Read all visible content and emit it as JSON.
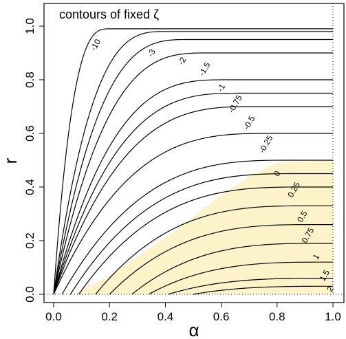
{
  "chart_data": {
    "type": "line",
    "annotation": "contours of fixed ζ",
    "xlabel": "α",
    "ylabel": "r",
    "xlim": [
      0.0,
      1.0
    ],
    "ylim": [
      0.0,
      1.0
    ],
    "x_ticks": [
      "0.0",
      "0.2",
      "0.4",
      "0.6",
      "0.8",
      "1.0"
    ],
    "y_ticks": [
      "0.0",
      "0.2",
      "0.4",
      "0.6",
      "0.8",
      "1.0"
    ],
    "grid": false,
    "colors": {
      "region": "#fdf3c8",
      "line": "#000000",
      "axis": "#000000"
    },
    "shaded_region": {
      "boundary": [
        {
          "x": 0.07,
          "y": 0.0
        },
        {
          "x": 0.2,
          "y": 0.07
        },
        {
          "x": 0.3,
          "y": 0.14
        },
        {
          "x": 0.4,
          "y": 0.21
        },
        {
          "x": 0.5,
          "y": 0.29
        },
        {
          "x": 0.6,
          "y": 0.37
        },
        {
          "x": 0.7,
          "y": 0.44
        },
        {
          "x": 0.8,
          "y": 0.49
        },
        {
          "x": 1.0,
          "y": 0.5
        }
      ]
    },
    "contours": [
      {
        "label": "-10",
        "x0": 0.0,
        "y_plateau": 0.99,
        "x_plateau": 0.2,
        "label_at": [
          0.15,
          0.93
        ]
      },
      {
        "label": "-3",
        "x0": 0.0,
        "y_plateau": 0.98,
        "x_plateau": 0.4,
        "label_at": [
          0.35,
          0.9
        ]
      },
      {
        "label": "-2",
        "x0": 0.0,
        "y_plateau": 0.95,
        "x_plateau": 0.48,
        "label_at": [
          0.46,
          0.87
        ]
      },
      {
        "label": "-1.5",
        "x0": 0.0,
        "y_plateau": 0.9,
        "x_plateau": 0.55,
        "label_at": [
          0.54,
          0.84
        ]
      },
      {
        "label": "-1",
        "x0": 0.0,
        "y_plateau": 0.8,
        "x_plateau": 0.62,
        "label_at": [
          0.6,
          0.77
        ]
      },
      {
        "label": "-0.75",
        "x0": 0.0,
        "y_plateau": 0.75,
        "x_plateau": 0.67,
        "label_at": [
          0.65,
          0.71
        ]
      },
      {
        "label": "-0.5",
        "x0": 0.0,
        "y_plateau": 0.7,
        "x_plateau": 0.72,
        "label_at": [
          0.7,
          0.64
        ]
      },
      {
        "label": "-0.25",
        "x0": 0.0,
        "y_plateau": 0.6,
        "x_plateau": 0.78,
        "label_at": [
          0.76,
          0.56
        ]
      },
      {
        "label": "0",
        "x0": 0.03,
        "y_plateau": 0.5,
        "x_plateau": 0.85,
        "label_at": [
          0.8,
          0.45
        ]
      },
      {
        "label": "0.25",
        "x0": 0.06,
        "y_plateau": 0.45,
        "x_plateau": 0.88,
        "label_at": [
          0.86,
          0.39
        ]
      },
      {
        "label": "0.5",
        "x0": 0.09,
        "y_plateau": 0.4,
        "x_plateau": 0.9,
        "label_at": [
          0.89,
          0.29
        ]
      },
      {
        "label": "0.75",
        "x0": 0.15,
        "y_plateau": 0.33,
        "x_plateau": 0.92,
        "label_at": [
          0.91,
          0.22
        ]
      },
      {
        "label": "1",
        "x0": 0.2,
        "y_plateau": 0.26,
        "x_plateau": 0.94,
        "label_at": [
          0.94,
          0.14
        ]
      },
      {
        "label": "1.5",
        "x0": 0.28,
        "y_plateau": 0.19,
        "x_plateau": 0.96,
        "label_at": [
          0.97,
          0.07
        ]
      },
      {
        "label": "2",
        "x0": 0.34,
        "y_plateau": 0.12,
        "x_plateau": 0.97,
        "label_at": [
          0.99,
          0.02
        ]
      },
      {
        "label": "",
        "x0": 0.41,
        "y_plateau": 0.06,
        "x_plateau": 0.98,
        "label_at": null
      },
      {
        "label": "",
        "x0": 0.5,
        "y_plateau": 0.03,
        "x_plateau": 0.99,
        "label_at": null
      }
    ]
  }
}
